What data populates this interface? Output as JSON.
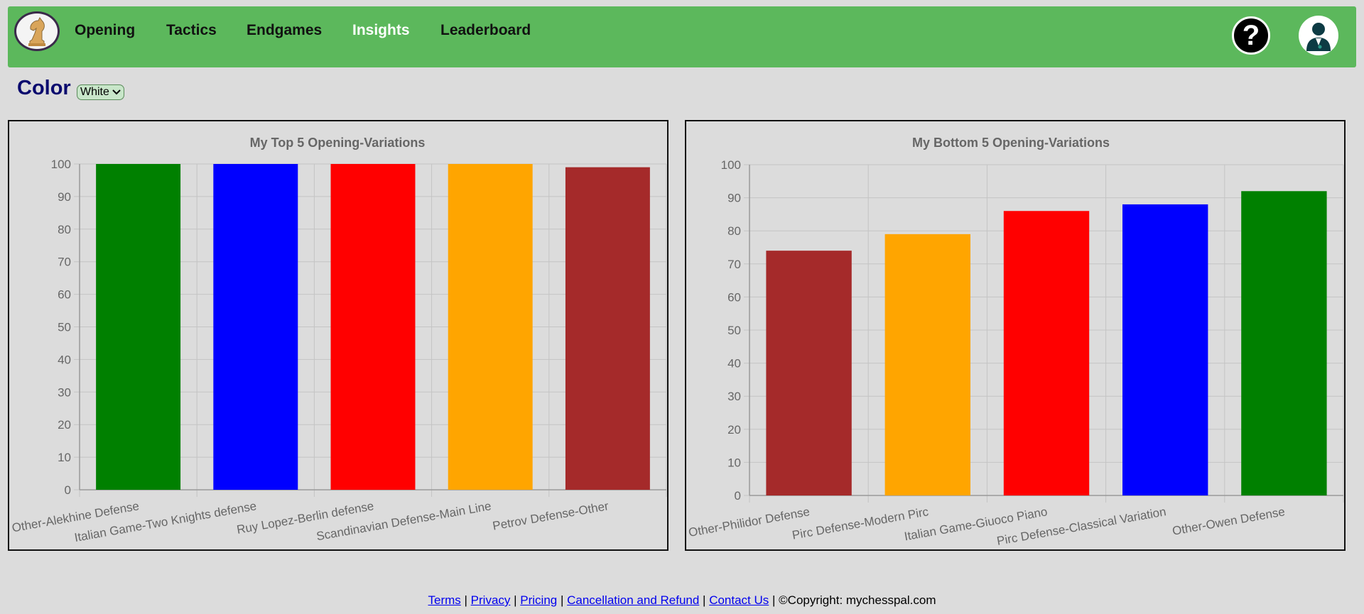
{
  "nav": {
    "items": [
      {
        "label": "Opening",
        "active": false
      },
      {
        "label": "Tactics",
        "active": false
      },
      {
        "label": "Endgames",
        "active": false
      },
      {
        "label": "Insights",
        "active": true
      },
      {
        "label": "Leaderboard",
        "active": false
      }
    ],
    "help_icon": "question-mark-icon",
    "user_icon": "user-avatar-icon",
    "logo_icon": "chess-knight-icon"
  },
  "filter": {
    "label": "Color",
    "selected": "White"
  },
  "colors": {
    "navbar": "#5cb85c",
    "background": "#dcdcdc",
    "label": "#0a0a6e"
  },
  "chart_data": [
    {
      "type": "bar",
      "title": "My Top 5 Opening-Variations",
      "categories": [
        "Other-Alekhine Defense",
        "Italian Game-Two Knights defense",
        "Ruy Lopez-Berlin defense",
        "Scandinavian Defense-Main Line",
        "Petrov Defense-Other"
      ],
      "values": [
        100,
        100,
        100,
        100,
        99
      ],
      "bar_colors": [
        "#008000",
        "#0000ff",
        "#ff0000",
        "#ffa500",
        "#a52a2a"
      ],
      "ylim": [
        0,
        100
      ],
      "yticks": [
        0,
        10,
        20,
        30,
        40,
        50,
        60,
        70,
        80,
        90,
        100
      ],
      "grid": true,
      "xlabel": "",
      "ylabel": ""
    },
    {
      "type": "bar",
      "title": "My Bottom 5 Opening-Variations",
      "categories": [
        "Other-Philidor Defense",
        "Pirc Defense-Modern Pirc",
        "Italian Game-Giuoco Piano",
        "Pirc Defense-Classical Variation",
        "Other-Owen Defense"
      ],
      "values": [
        74,
        79,
        86,
        88,
        92
      ],
      "bar_colors": [
        "#a52a2a",
        "#ffa500",
        "#ff0000",
        "#0000ff",
        "#008000"
      ],
      "ylim": [
        0,
        100
      ],
      "yticks": [
        0,
        10,
        20,
        30,
        40,
        50,
        60,
        70,
        80,
        90,
        100
      ],
      "grid": true,
      "xlabel": "",
      "ylabel": ""
    }
  ],
  "footer": {
    "links": [
      "Terms",
      "Privacy",
      "Pricing",
      "Cancellation and Refund",
      "Contact Us"
    ],
    "separator": " | ",
    "copyright": "©Copyright: mychesspal.com"
  }
}
